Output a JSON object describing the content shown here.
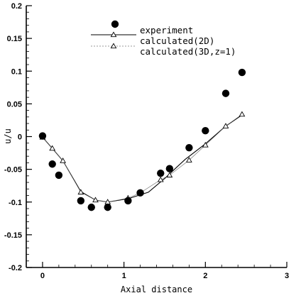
{
  "chart_data": {
    "type": "scatter",
    "title": "",
    "xlabel": "Axial distance",
    "ylabel": "u/u",
    "xlim": [
      -0.2,
      3.0
    ],
    "ylim": [
      -0.2,
      0.2
    ],
    "x_ticks": [
      "0",
      "1",
      "2",
      "3"
    ],
    "y_ticks": [
      "0.2",
      "0.15",
      "0.1",
      "0.05",
      "0",
      "-0.05",
      "-0.1",
      "-0.15",
      "-0.2"
    ],
    "grid": false,
    "legend_position": "top-center",
    "series": [
      {
        "name": "experiment",
        "marker": "filled-circle",
        "x": [
          0.0,
          0.12,
          0.2,
          0.47,
          0.6,
          0.8,
          1.05,
          1.2,
          1.45,
          1.56,
          1.8,
          2.0,
          2.25,
          2.45
        ],
        "y": [
          0.001,
          -0.042,
          -0.059,
          -0.098,
          -0.108,
          -0.108,
          -0.098,
          -0.086,
          -0.056,
          -0.049,
          -0.017,
          0.009,
          0.066,
          0.098
        ]
      },
      {
        "name": "calculated(2D)",
        "marker": "line",
        "x": [
          0.0,
          0.12,
          0.25,
          0.47,
          0.65,
          0.8,
          1.05,
          1.3,
          1.5,
          1.75,
          2.0,
          2.25,
          2.45
        ],
        "y": [
          -0.001,
          -0.018,
          -0.037,
          -0.084,
          -0.097,
          -0.1,
          -0.095,
          -0.085,
          -0.064,
          -0.035,
          -0.011,
          0.016,
          0.033
        ]
      },
      {
        "name": "calculated(3D,z=1)",
        "marker": "open-triangle",
        "x": [
          0.0,
          0.12,
          0.25,
          0.47,
          0.65,
          0.8,
          1.05,
          1.2,
          1.45,
          1.56,
          1.8,
          2.0,
          2.25,
          2.45
        ],
        "y": [
          -0.001,
          -0.018,
          -0.037,
          -0.085,
          -0.097,
          -0.1,
          -0.094,
          -0.086,
          -0.066,
          -0.059,
          -0.036,
          -0.013,
          0.016,
          0.034
        ]
      }
    ]
  }
}
